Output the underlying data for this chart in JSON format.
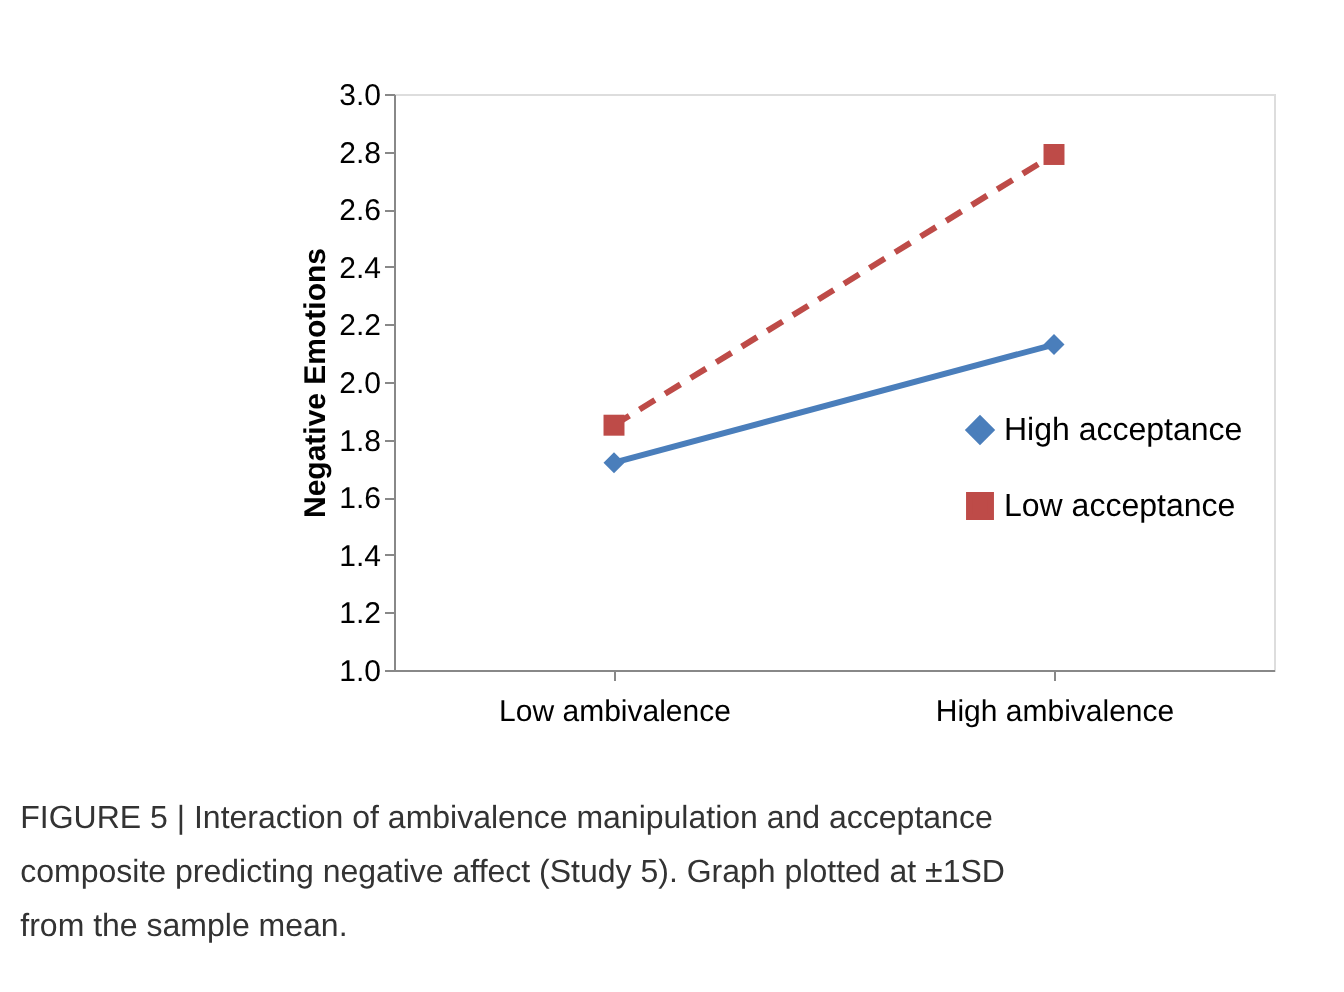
{
  "chart_data": {
    "type": "line",
    "ylabel": "Negative Emotions",
    "categories": [
      "Low ambivalence",
      "High ambivalence"
    ],
    "series": [
      {
        "name": "High acceptance",
        "color": "#4a7ebb",
        "values": [
          1.72,
          2.13
        ],
        "marker": "diamond",
        "line_style": "solid"
      },
      {
        "name": "Low acceptance",
        "color": "#be4b48",
        "values": [
          1.85,
          2.79
        ],
        "marker": "square",
        "line_style": "dashed"
      }
    ],
    "ylim": [
      1.0,
      3.0
    ],
    "yticks": [
      {
        "value": 1,
        "label": "1.0"
      },
      {
        "value": 1.2,
        "label": "1.2"
      },
      {
        "value": 1.4,
        "label": "1.4"
      },
      {
        "value": 1.6,
        "label": "1.6"
      },
      {
        "value": 1.8,
        "label": "1.8"
      },
      {
        "value": 2,
        "label": "2.0"
      },
      {
        "value": 2.2,
        "label": "2.2"
      },
      {
        "value": 2.4,
        "label": "2.4"
      },
      {
        "value": 2.6,
        "label": "2.6"
      },
      {
        "value": 2.8,
        "label": "2.8"
      },
      {
        "value": 3,
        "label": "3.0"
      }
    ],
    "grid": false,
    "legend": "right",
    "annotations": [
      "FIGURE 5 | Interaction of ambivalence manipulation and acceptance composite predicting negative affect (Study 5). Graph plotted at ±1SD from the sample mean."
    ]
  }
}
